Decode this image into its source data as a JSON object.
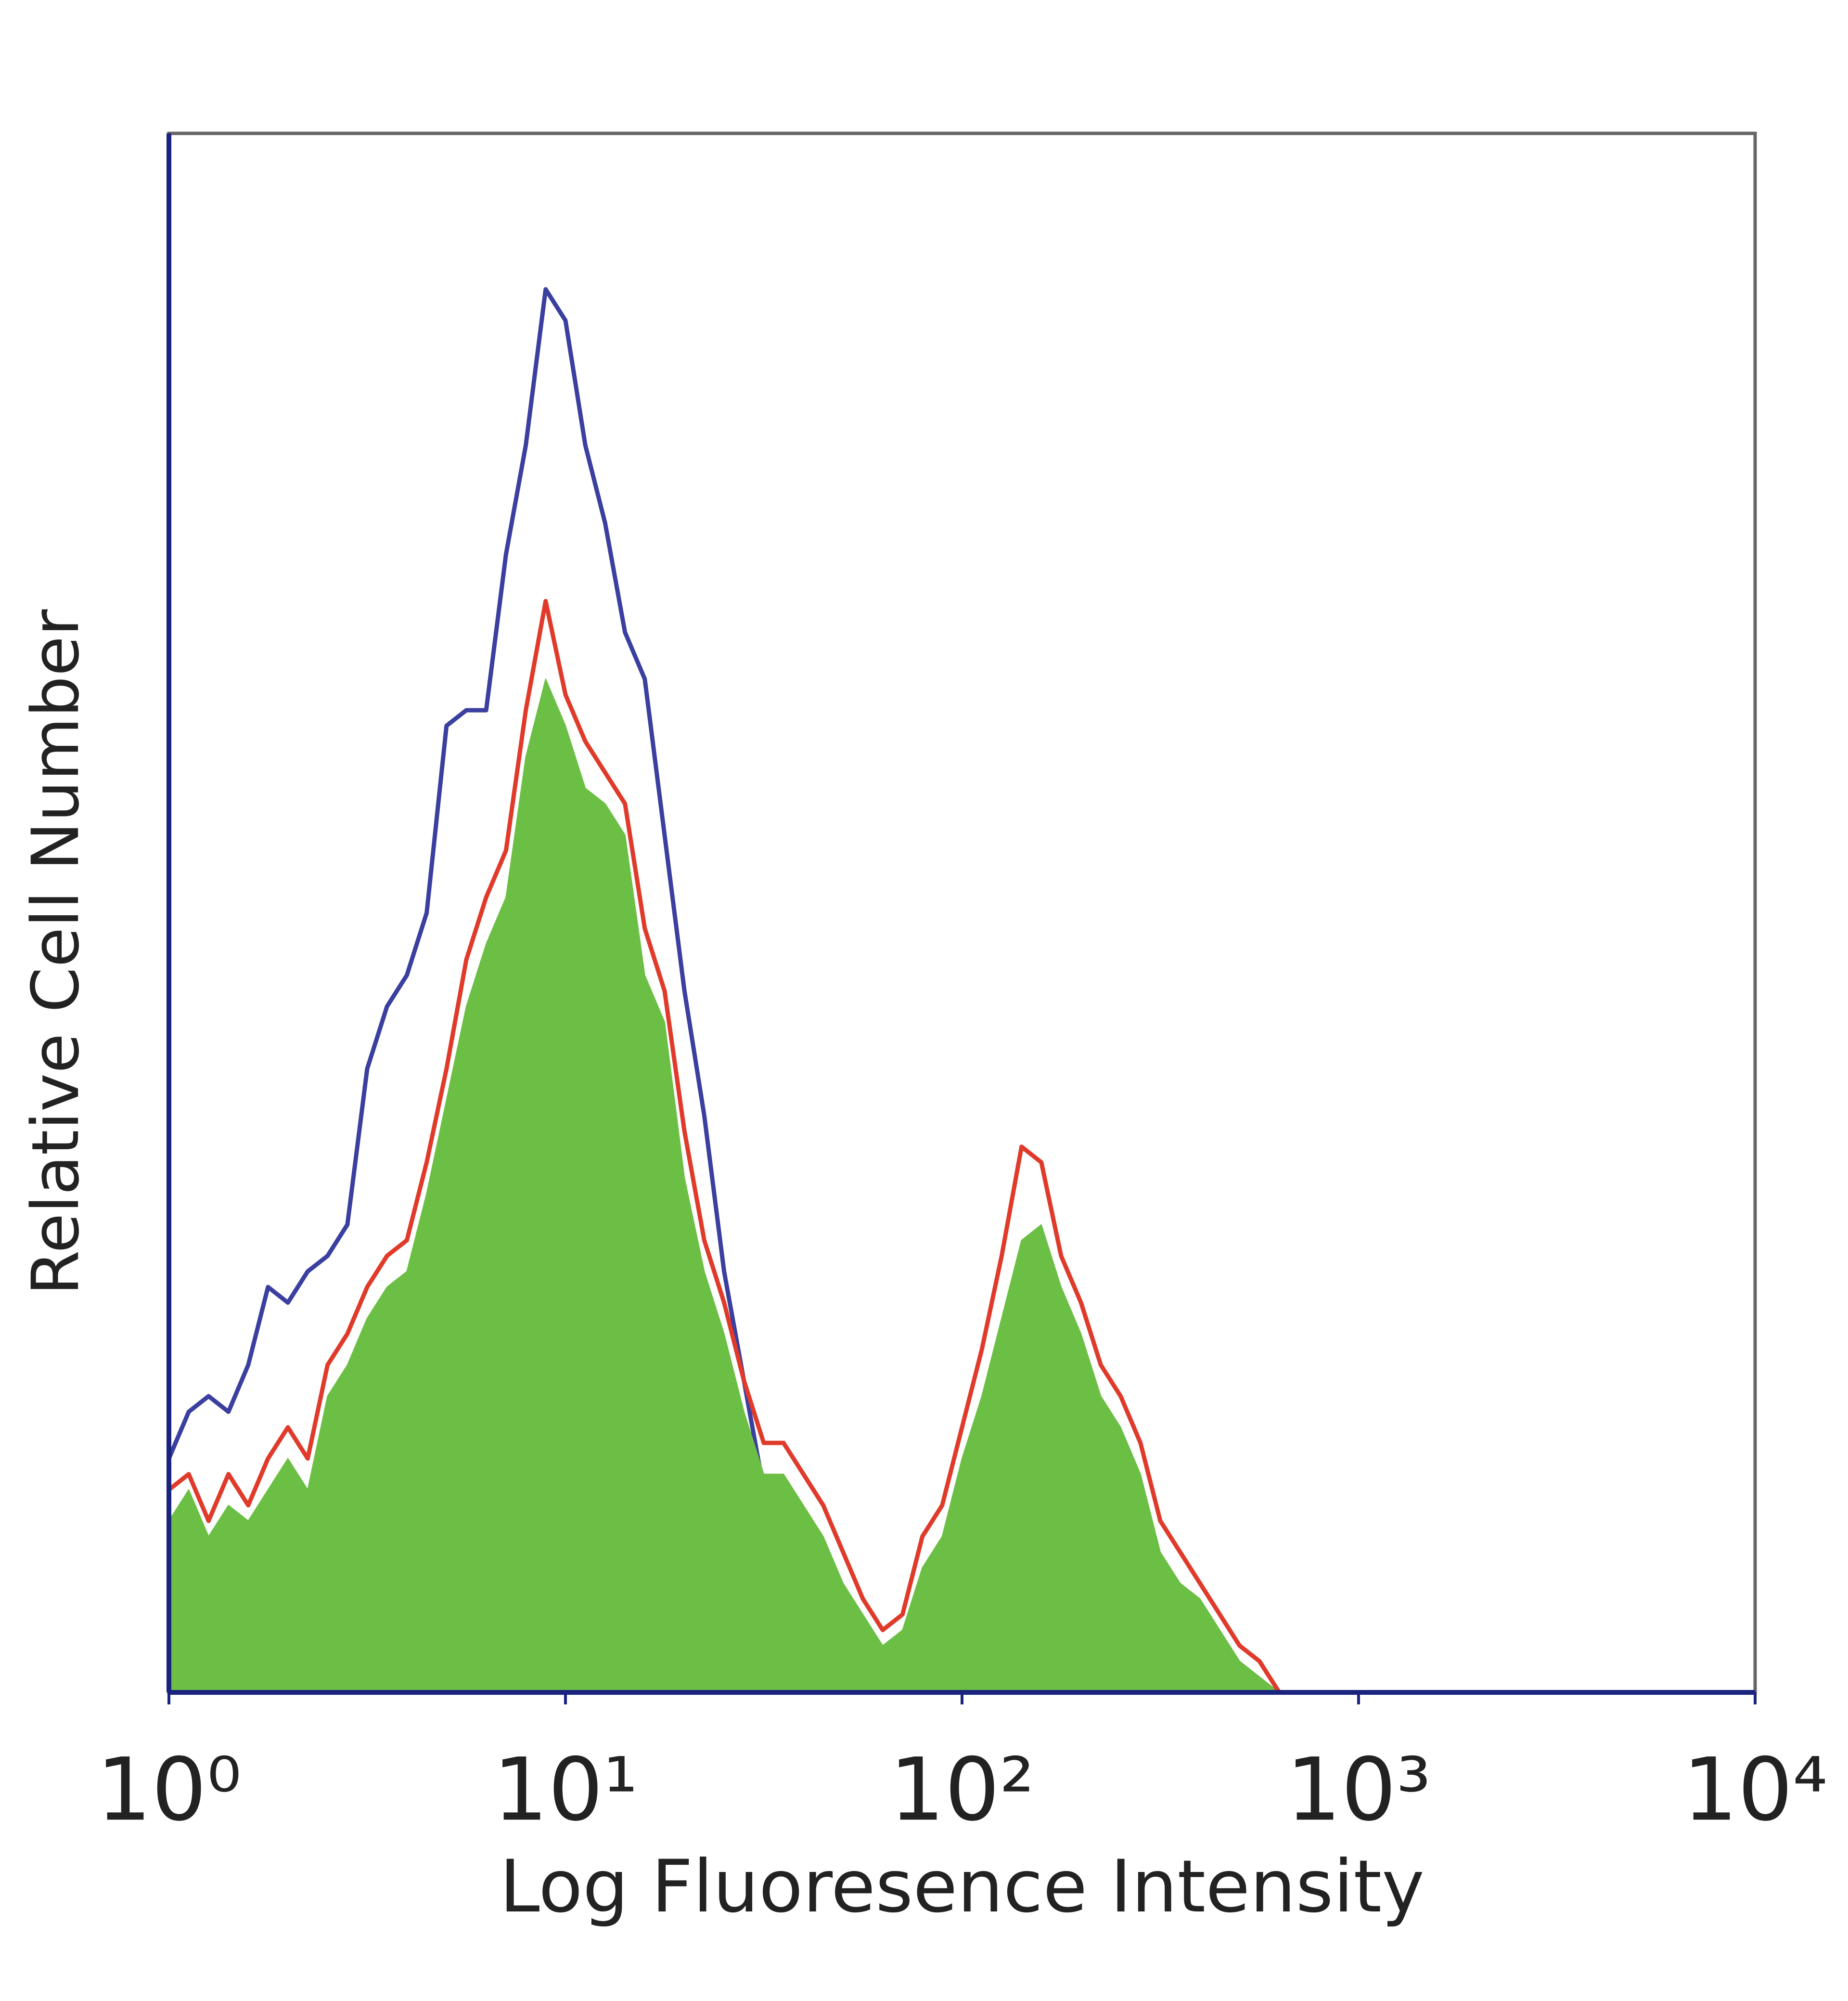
{
  "chart_data": {
    "type": "histogram-overlay",
    "xlabel": "Log Fluoresence Intensity",
    "ylabel": "Relative Cell Number",
    "xscale": "log",
    "xlim": [
      1,
      10000
    ],
    "xticks": [
      {
        "value": 1,
        "label": "10⁰"
      },
      {
        "value": 10,
        "label": "10¹"
      },
      {
        "value": 100,
        "label": "10²"
      },
      {
        "value": 1000,
        "label": "10³"
      },
      {
        "value": 10000,
        "label": "10⁴"
      }
    ],
    "ylim": [
      0,
      100
    ],
    "x": [
      1,
      1.122,
      1.259,
      1.413,
      1.585,
      1.778,
      1.995,
      2.239,
      2.512,
      2.818,
      3.162,
      3.548,
      3.981,
      4.467,
      5.012,
      5.623,
      6.31,
      7.079,
      7.943,
      8.913,
      10,
      11.22,
      12.59,
      14.13,
      15.85,
      17.78,
      19.95,
      22.39,
      25.12,
      28.18,
      31.62,
      35.48,
      39.81,
      44.67,
      50.12,
      56.23,
      63.1,
      70.79,
      79.43,
      89.13,
      100,
      112.2,
      125.9,
      141.3,
      158.5,
      177.8,
      199.5,
      223.9,
      251.2,
      281.8,
      316.2,
      354.8,
      398.1,
      446.7,
      501.2,
      562.3,
      631,
      707.9,
      794.3
    ],
    "series": [
      {
        "color": "#3a3fa0",
        "fill": false,
        "values": [
          15,
          18,
          19,
          18,
          21,
          26,
          25,
          27,
          28,
          30,
          40,
          44,
          46,
          50,
          62,
          63,
          63,
          73,
          80,
          90,
          88,
          80,
          75,
          68,
          65,
          55,
          45,
          37,
          27,
          20,
          13,
          8,
          5,
          3,
          2,
          1,
          1,
          1,
          1,
          1,
          1,
          0,
          0,
          0,
          0,
          0,
          0,
          0,
          0,
          0,
          0,
          0,
          0,
          0,
          0,
          0,
          0,
          0,
          0
        ]
      },
      {
        "color": "#6cbf45",
        "fill": true,
        "values": [
          11,
          13,
          10,
          12,
          11,
          13,
          15,
          13,
          19,
          21,
          24,
          26,
          27,
          32,
          38,
          44,
          48,
          51,
          60,
          65,
          62,
          58,
          57,
          55,
          46,
          43,
          33,
          27,
          23,
          18,
          14,
          14,
          12,
          10,
          7,
          5,
          3,
          4,
          8,
          10,
          15,
          19,
          24,
          29,
          30,
          26,
          23,
          19,
          17,
          14,
          9,
          7,
          6,
          4,
          2,
          1,
          0,
          0,
          0
        ]
      },
      {
        "color": "#e03a2a",
        "fill": false,
        "values": [
          13,
          14,
          11,
          14,
          12,
          15,
          17,
          15,
          21,
          23,
          26,
          28,
          29,
          34,
          40,
          47,
          51,
          54,
          63,
          70,
          64,
          61,
          59,
          57,
          49,
          45,
          36,
          29,
          25,
          20,
          16,
          16,
          14,
          12,
          9,
          6,
          4,
          5,
          10,
          12,
          17,
          22,
          28,
          35,
          34,
          28,
          25,
          21,
          19,
          16,
          11,
          9,
          7,
          5,
          3,
          2,
          0,
          0,
          0
        ]
      }
    ]
  }
}
